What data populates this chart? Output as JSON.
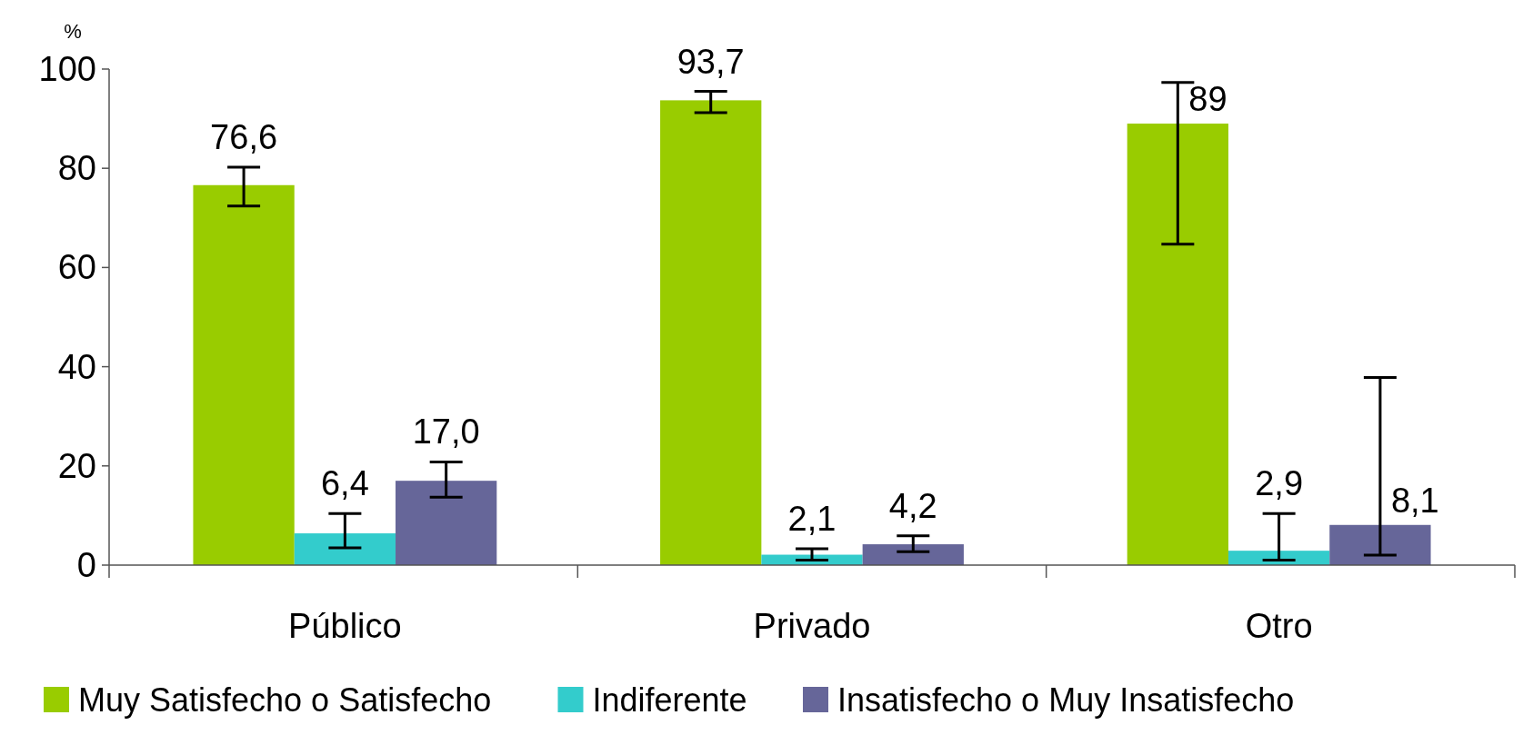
{
  "chart_data": {
    "type": "bar",
    "ylabel": "%",
    "categories": [
      "Público",
      "Privado",
      "Otro"
    ],
    "series": [
      {
        "name": "Muy Satisfecho o Satisfecho",
        "color": "#99cc00",
        "values": [
          76.6,
          93.7,
          89
        ],
        "value_labels": [
          "76,6",
          "93,7",
          "89"
        ],
        "errors": [
          [
            72.4,
            80.2
          ],
          [
            91.2,
            95.5
          ],
          [
            64.7,
            97.3
          ]
        ]
      },
      {
        "name": "Indiferente",
        "color": "#33cccc",
        "values": [
          6.4,
          2.1,
          2.9
        ],
        "value_labels": [
          "6,4",
          "2,1",
          "2,9"
        ],
        "errors": [
          [
            3.5,
            10.4
          ],
          [
            1.0,
            3.3
          ],
          [
            1.0,
            10.4
          ]
        ]
      },
      {
        "name": "Insatisfecho o Muy Insatisfecho",
        "color": "#666699",
        "values": [
          17.0,
          4.2,
          8.1
        ],
        "value_labels": [
          "17,0",
          "4,2",
          "8,1"
        ],
        "errors": [
          [
            13.7,
            20.8
          ],
          [
            2.7,
            5.9
          ],
          [
            2.0,
            37.8
          ]
        ]
      }
    ],
    "ylim": [
      0,
      100
    ],
    "yticks": [
      0,
      20,
      40,
      60,
      80,
      100
    ],
    "grid": false,
    "legend": "bottom"
  }
}
